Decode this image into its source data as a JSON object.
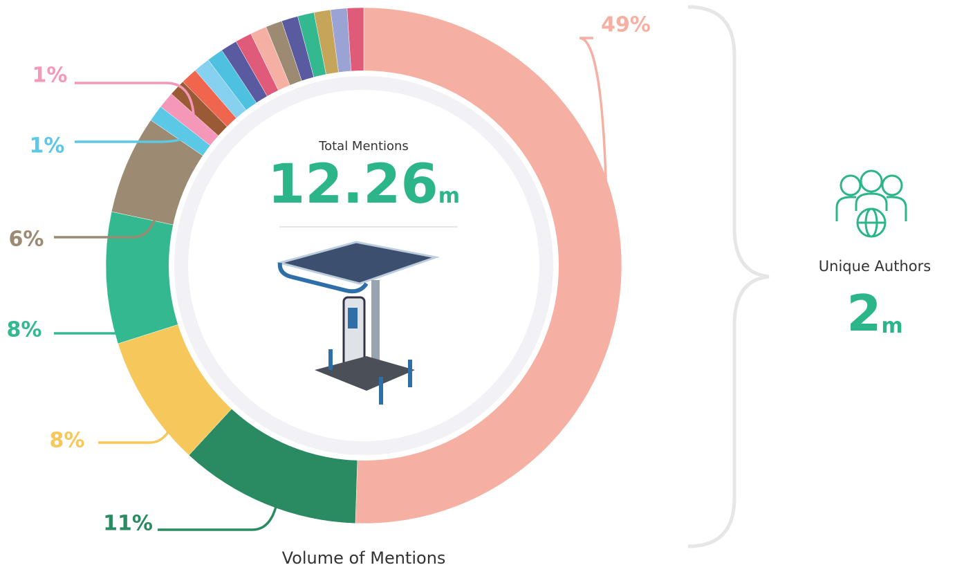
{
  "chart_data": {
    "type": "pie",
    "donut": true,
    "values": [
      49,
      11,
      8,
      8,
      6,
      1,
      1,
      1,
      1,
      1,
      1,
      1,
      1,
      1,
      1,
      1,
      1,
      1,
      1,
      1
    ],
    "value_labels": [
      "49%",
      "11%",
      "8%",
      "8%",
      "6%",
      "1%",
      "1%",
      null,
      null,
      null,
      null,
      null,
      null,
      null,
      null,
      null,
      null,
      null,
      null,
      null
    ],
    "colors": [
      "#f5afa3",
      "#2a8a62",
      "#f6c75a",
      "#33b88f",
      "#9c8a72",
      "#5bc8e6",
      "#f497b8",
      "#9a5a35",
      "#f0654d",
      "#86d0f0",
      "#4fc1e0",
      "#5a5aa0",
      "#e05a7a",
      "#f5afa3",
      "#9c8a72",
      "#5a5aa0",
      "#33b88f",
      "#c4a55a",
      "#9aa3d4",
      "#e05a7a"
    ],
    "caption": "Volume of Mentions",
    "center": {
      "label": "Total Mentions",
      "value": "12.26",
      "unit": "m"
    },
    "side": {
      "label": "Unique Authors",
      "value": "2",
      "unit": "m"
    }
  }
}
